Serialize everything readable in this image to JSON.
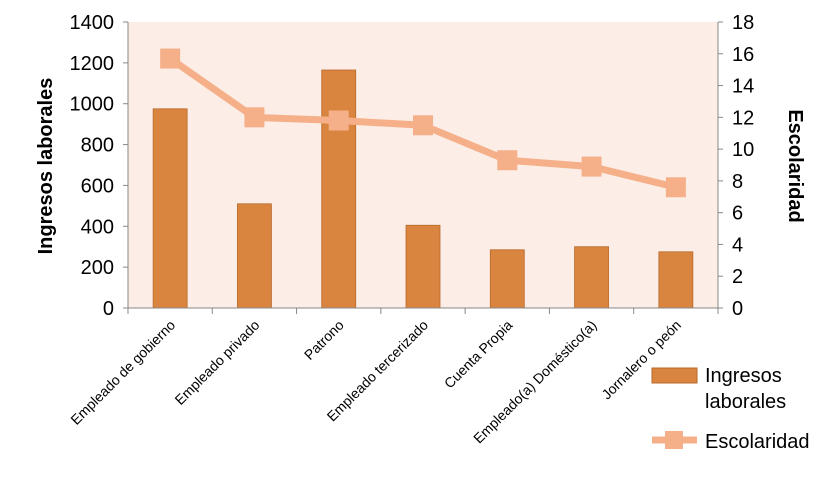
{
  "chart_data": {
    "type": "bar+line",
    "categories": [
      "Empleado de gobierno",
      "Empleado privado",
      "Patrono",
      "Empleado tercerizado",
      "Cuenta Propia",
      "Empleado(a) Doméstico(a)",
      "Jornalero o peón"
    ],
    "series": [
      {
        "name": "Ingresos laborales",
        "type": "bar",
        "axis": "left",
        "values": [
          975,
          510,
          1165,
          405,
          285,
          300,
          275
        ],
        "legend_lines": [
          "Ingresos",
          "laborales"
        ]
      },
      {
        "name": "Escolaridad",
        "type": "line",
        "axis": "right",
        "values": [
          15.7,
          12.0,
          11.8,
          11.5,
          9.3,
          8.9,
          7.6
        ]
      }
    ],
    "ylabel_left": "Ingresos laborales",
    "ylabel_right": "Escolaridad",
    "ylim_left": [
      0,
      1400
    ],
    "ylim_right": [
      0,
      18
    ],
    "yticks_left": [
      "0",
      "200",
      "400",
      "600",
      "800",
      "1000",
      "1200",
      "1400"
    ],
    "yticks_right": [
      "0",
      "2",
      "4",
      "6",
      "8",
      "10",
      "12",
      "14",
      "16",
      "18"
    ],
    "grid": false,
    "legend_position": "bottom-right",
    "colors": {
      "bar": "#D9843F",
      "bar_edge": "#B8692A",
      "line": "#F5B08A",
      "plot_background": "#FCEDE6",
      "axis": "#888888"
    }
  }
}
